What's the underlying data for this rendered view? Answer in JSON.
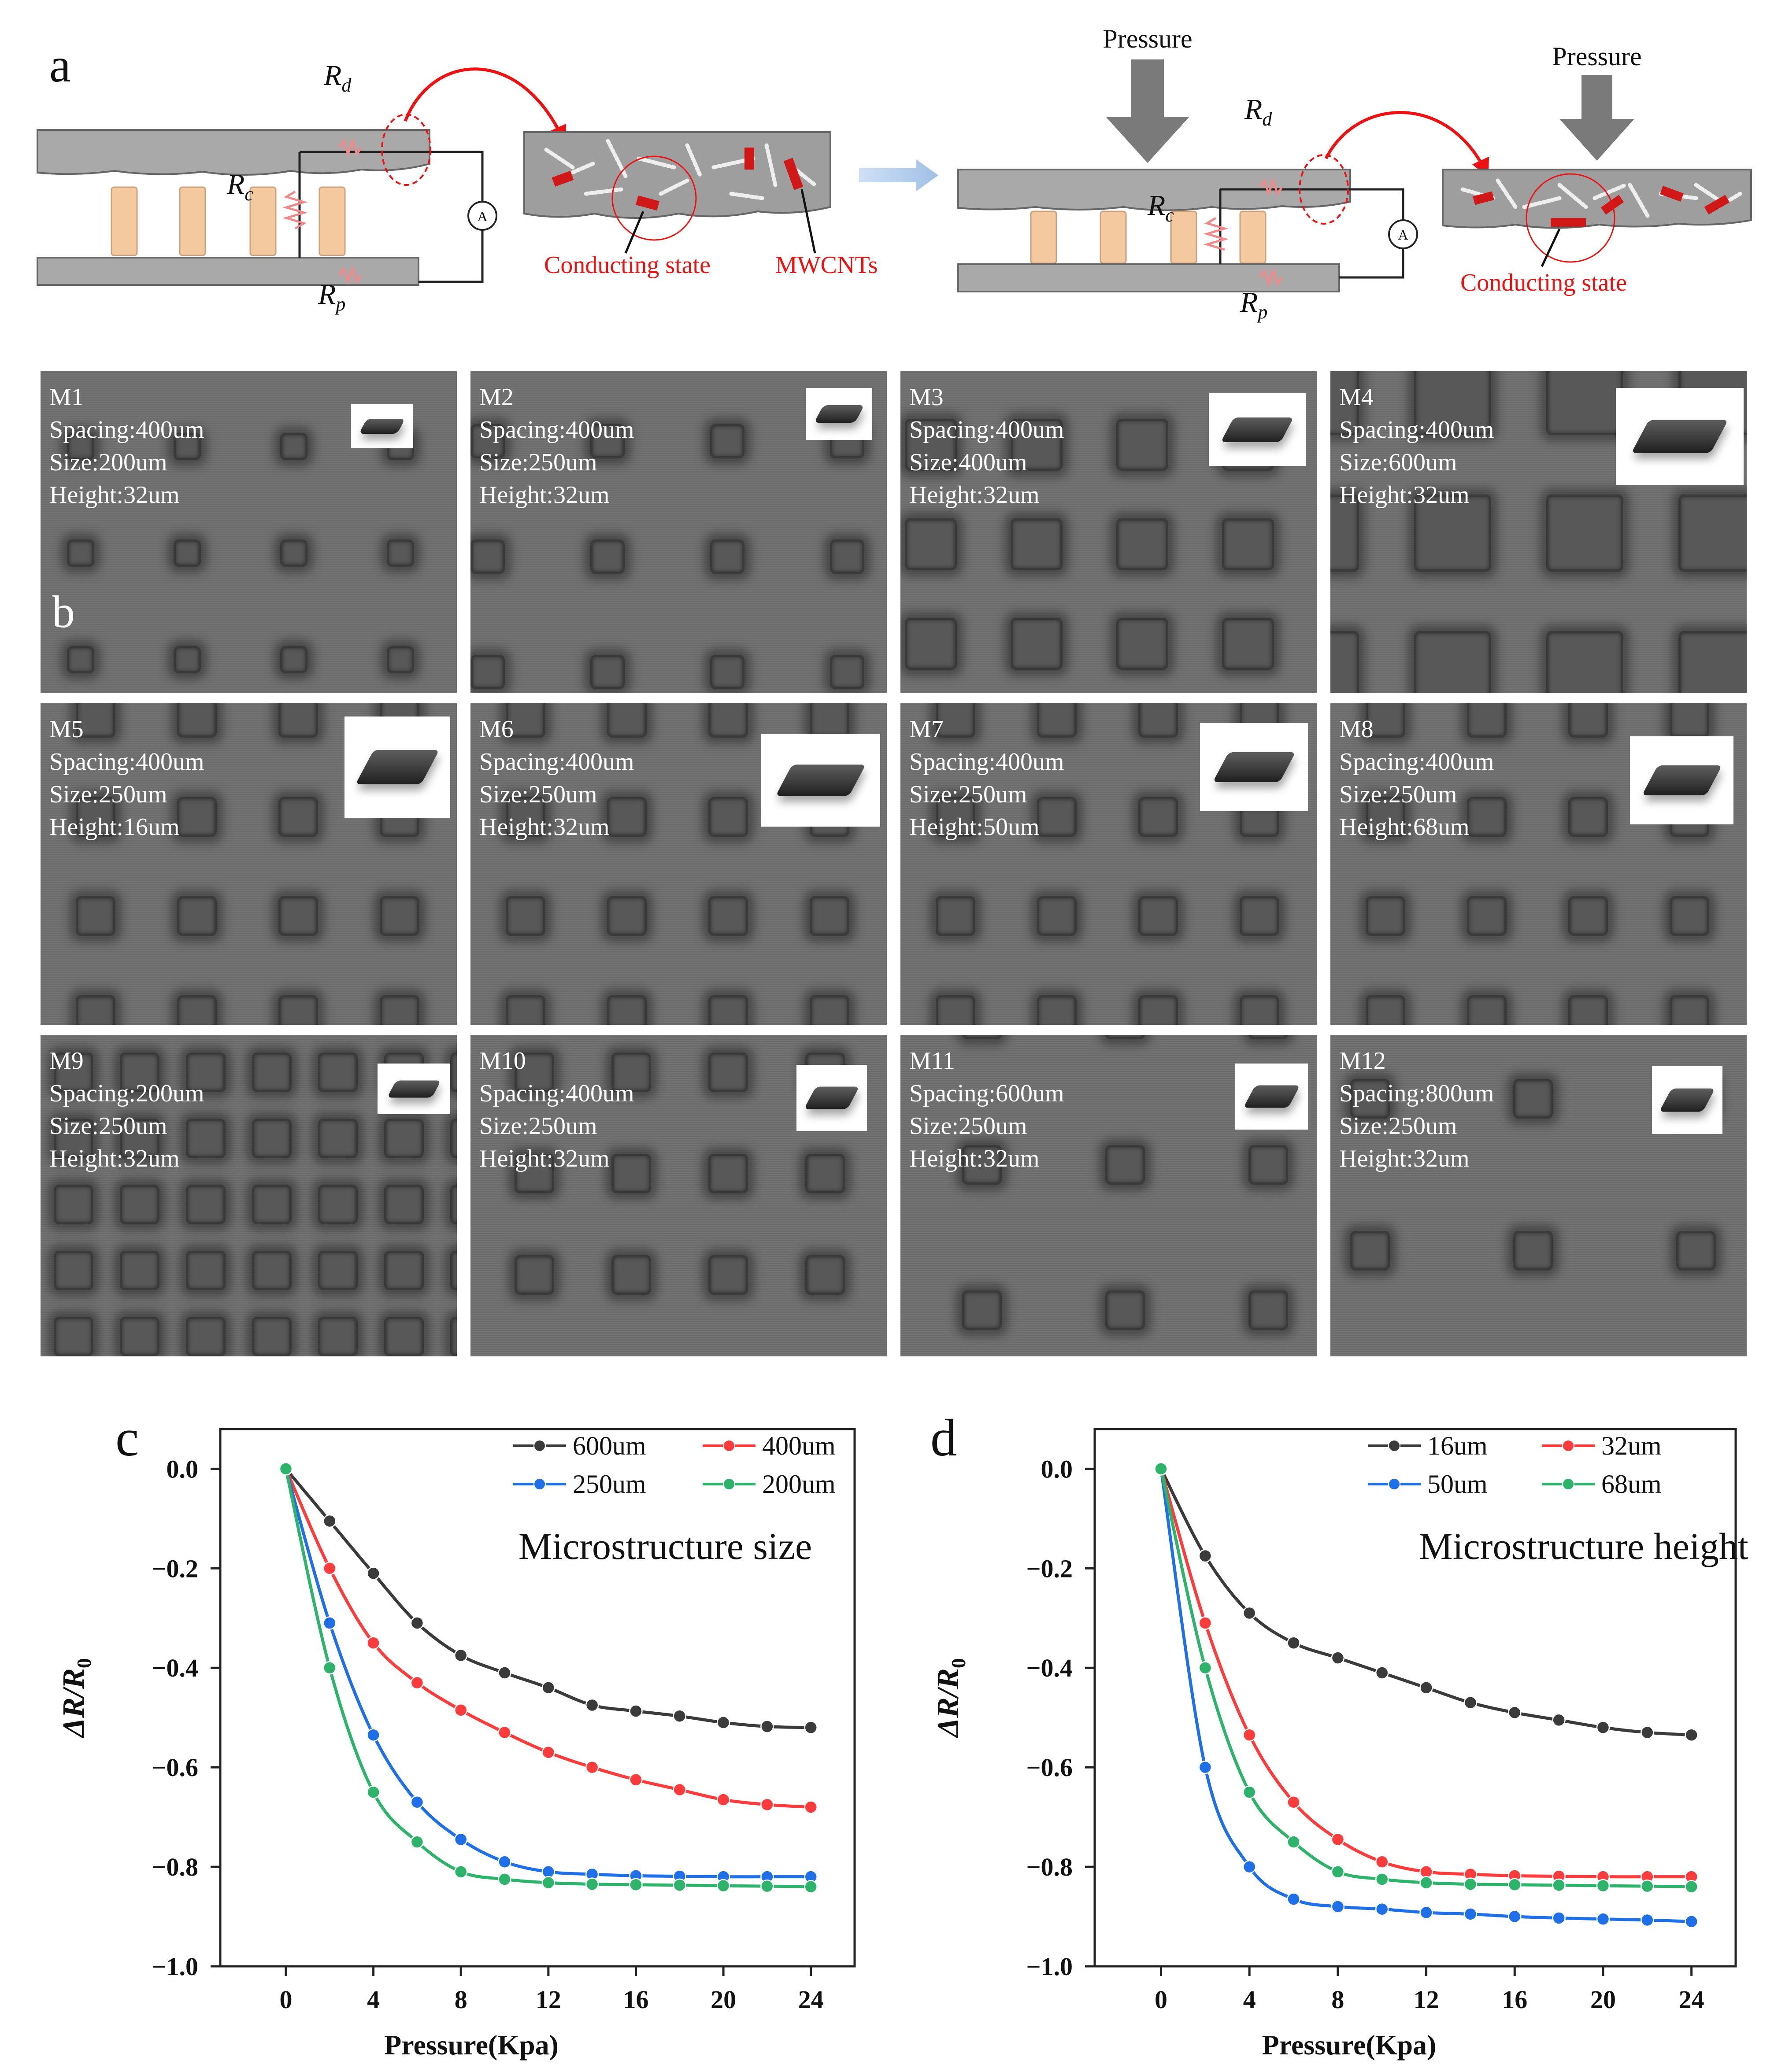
{
  "panel_a": {
    "label": "a",
    "left": {
      "r_d": "R",
      "r_d_sub": "d",
      "r_c": "R",
      "r_c_sub": "c",
      "r_p": "R",
      "r_p_sub": "p",
      "meter": "A",
      "conducting_state": "Conducting state",
      "mwcnts": "MWCNTs"
    },
    "right": {
      "pressure_1": "Pressure",
      "pressure_2": "Pressure",
      "r_d": "R",
      "r_d_sub": "d",
      "r_c": "R",
      "r_c_sub": "c",
      "r_p": "R",
      "r_p_sub": "p",
      "meter": "A",
      "conducting_state": "Conducting state"
    }
  },
  "panel_b": {
    "label": "b",
    "tiles": [
      {
        "id": "M1",
        "spacing": "Spacing:400um",
        "size": "Size:200um",
        "height": "Height:32um"
      },
      {
        "id": "M2",
        "spacing": "Spacing:400um",
        "size": "Size:250um",
        "height": "Height:32um"
      },
      {
        "id": "M3",
        "spacing": "Spacing:400um",
        "size": "Size:400um",
        "height": "Height:32um"
      },
      {
        "id": "M4",
        "spacing": "Spacing:400um",
        "size": "Size:600um",
        "height": "Height:32um"
      },
      {
        "id": "M5",
        "spacing": "Spacing:400um",
        "size": "Size:250um",
        "height": "Height:16um"
      },
      {
        "id": "M6",
        "spacing": "Spacing:400um",
        "size": "Size:250um",
        "height": "Height:32um"
      },
      {
        "id": "M7",
        "spacing": "Spacing:400um",
        "size": "Size:250um",
        "height": "Height:50um"
      },
      {
        "id": "M8",
        "spacing": "Spacing:400um",
        "size": "Size:250um",
        "height": "Height:68um"
      },
      {
        "id": "M9",
        "spacing": "Spacing:200um",
        "size": "Size:250um",
        "height": "Height:32um"
      },
      {
        "id": "M10",
        "spacing": "Spacing:400um",
        "size": "Size:250um",
        "height": "Height:32um"
      },
      {
        "id": "M11",
        "spacing": "Spacing:600um",
        "size": "Size:250um",
        "height": "Height:32um"
      },
      {
        "id": "M12",
        "spacing": "Spacing:800um",
        "size": "Size:250um",
        "height": "Height:32um"
      }
    ]
  },
  "colors": {
    "black": "#3b3b3b",
    "red": "#ff3b3b",
    "blue": "#1f6fe8",
    "green": "#2db36a"
  },
  "chart_data": [
    {
      "panel": "c",
      "type": "line",
      "title": "Microstructure size",
      "xlabel": "Pressure(Kpa)",
      "ylabel": "ΔR/R0",
      "ylabel_main": "ΔR/R",
      "ylabel_sub": "0",
      "xlim": [
        -3,
        26
      ],
      "ylim": [
        -1.0,
        0.08
      ],
      "xticks": [
        0,
        4,
        8,
        12,
        16,
        20,
        24
      ],
      "yticks": [
        0.0,
        -0.2,
        -0.4,
        -0.6,
        -0.8,
        -1.0
      ],
      "ytick_labels": [
        "0.0",
        "−0.2",
        "−0.4",
        "−0.6",
        "−0.8",
        "−1.0"
      ],
      "x": [
        0,
        2,
        4,
        6,
        8,
        10,
        12,
        14,
        16,
        18,
        20,
        22,
        24
      ],
      "series": [
        {
          "name": "600um",
          "color": "#3b3b3b",
          "values": [
            0,
            -0.105,
            -0.21,
            -0.31,
            -0.375,
            -0.41,
            -0.44,
            -0.475,
            -0.487,
            -0.497,
            -0.51,
            -0.518,
            -0.52
          ]
        },
        {
          "name": "400um",
          "color": "#ff3b3b",
          "values": [
            0,
            -0.2,
            -0.35,
            -0.43,
            -0.485,
            -0.53,
            -0.57,
            -0.6,
            -0.625,
            -0.645,
            -0.665,
            -0.675,
            -0.68
          ]
        },
        {
          "name": "250um",
          "color": "#1f6fe8",
          "values": [
            0,
            -0.31,
            -0.535,
            -0.67,
            -0.745,
            -0.79,
            -0.81,
            -0.815,
            -0.818,
            -0.819,
            -0.82,
            -0.82,
            -0.82
          ]
        },
        {
          "name": "200um",
          "color": "#2db36a",
          "values": [
            0,
            -0.4,
            -0.65,
            -0.75,
            -0.81,
            -0.825,
            -0.832,
            -0.835,
            -0.836,
            -0.837,
            -0.838,
            -0.839,
            -0.84
          ]
        }
      ]
    },
    {
      "panel": "d",
      "type": "line",
      "title": "Microstructure height",
      "xlabel": "Pressure(Kpa)",
      "ylabel": "ΔR/R0",
      "ylabel_main": "ΔR/R",
      "ylabel_sub": "0",
      "xlim": [
        -3,
        26
      ],
      "ylim": [
        -1.0,
        0.08
      ],
      "xticks": [
        0,
        4,
        8,
        12,
        16,
        20,
        24
      ],
      "yticks": [
        0.0,
        -0.2,
        -0.4,
        -0.6,
        -0.8,
        -1.0
      ],
      "ytick_labels": [
        "0.0",
        "−0.2",
        "−0.4",
        "−0.6",
        "−0.8",
        "−1.0"
      ],
      "x": [
        0,
        2,
        4,
        6,
        8,
        10,
        12,
        14,
        16,
        18,
        20,
        22,
        24
      ],
      "series": [
        {
          "name": "16um",
          "color": "#3b3b3b",
          "values": [
            0,
            -0.175,
            -0.29,
            -0.35,
            -0.38,
            -0.41,
            -0.44,
            -0.47,
            -0.49,
            -0.505,
            -0.52,
            -0.53,
            -0.535
          ]
        },
        {
          "name": "32um",
          "color": "#ff3b3b",
          "values": [
            0,
            -0.31,
            -0.535,
            -0.67,
            -0.745,
            -0.79,
            -0.81,
            -0.815,
            -0.818,
            -0.819,
            -0.82,
            -0.82,
            -0.82
          ]
        },
        {
          "name": "50um",
          "color": "#1f6fe8",
          "values": [
            0,
            -0.6,
            -0.8,
            -0.865,
            -0.88,
            -0.885,
            -0.892,
            -0.895,
            -0.9,
            -0.903,
            -0.905,
            -0.907,
            -0.91
          ]
        },
        {
          "name": "68um",
          "color": "#2db36a",
          "values": [
            0,
            -0.4,
            -0.65,
            -0.75,
            -0.81,
            -0.825,
            -0.832,
            -0.835,
            -0.836,
            -0.837,
            -0.838,
            -0.839,
            -0.84
          ]
        }
      ]
    }
  ]
}
